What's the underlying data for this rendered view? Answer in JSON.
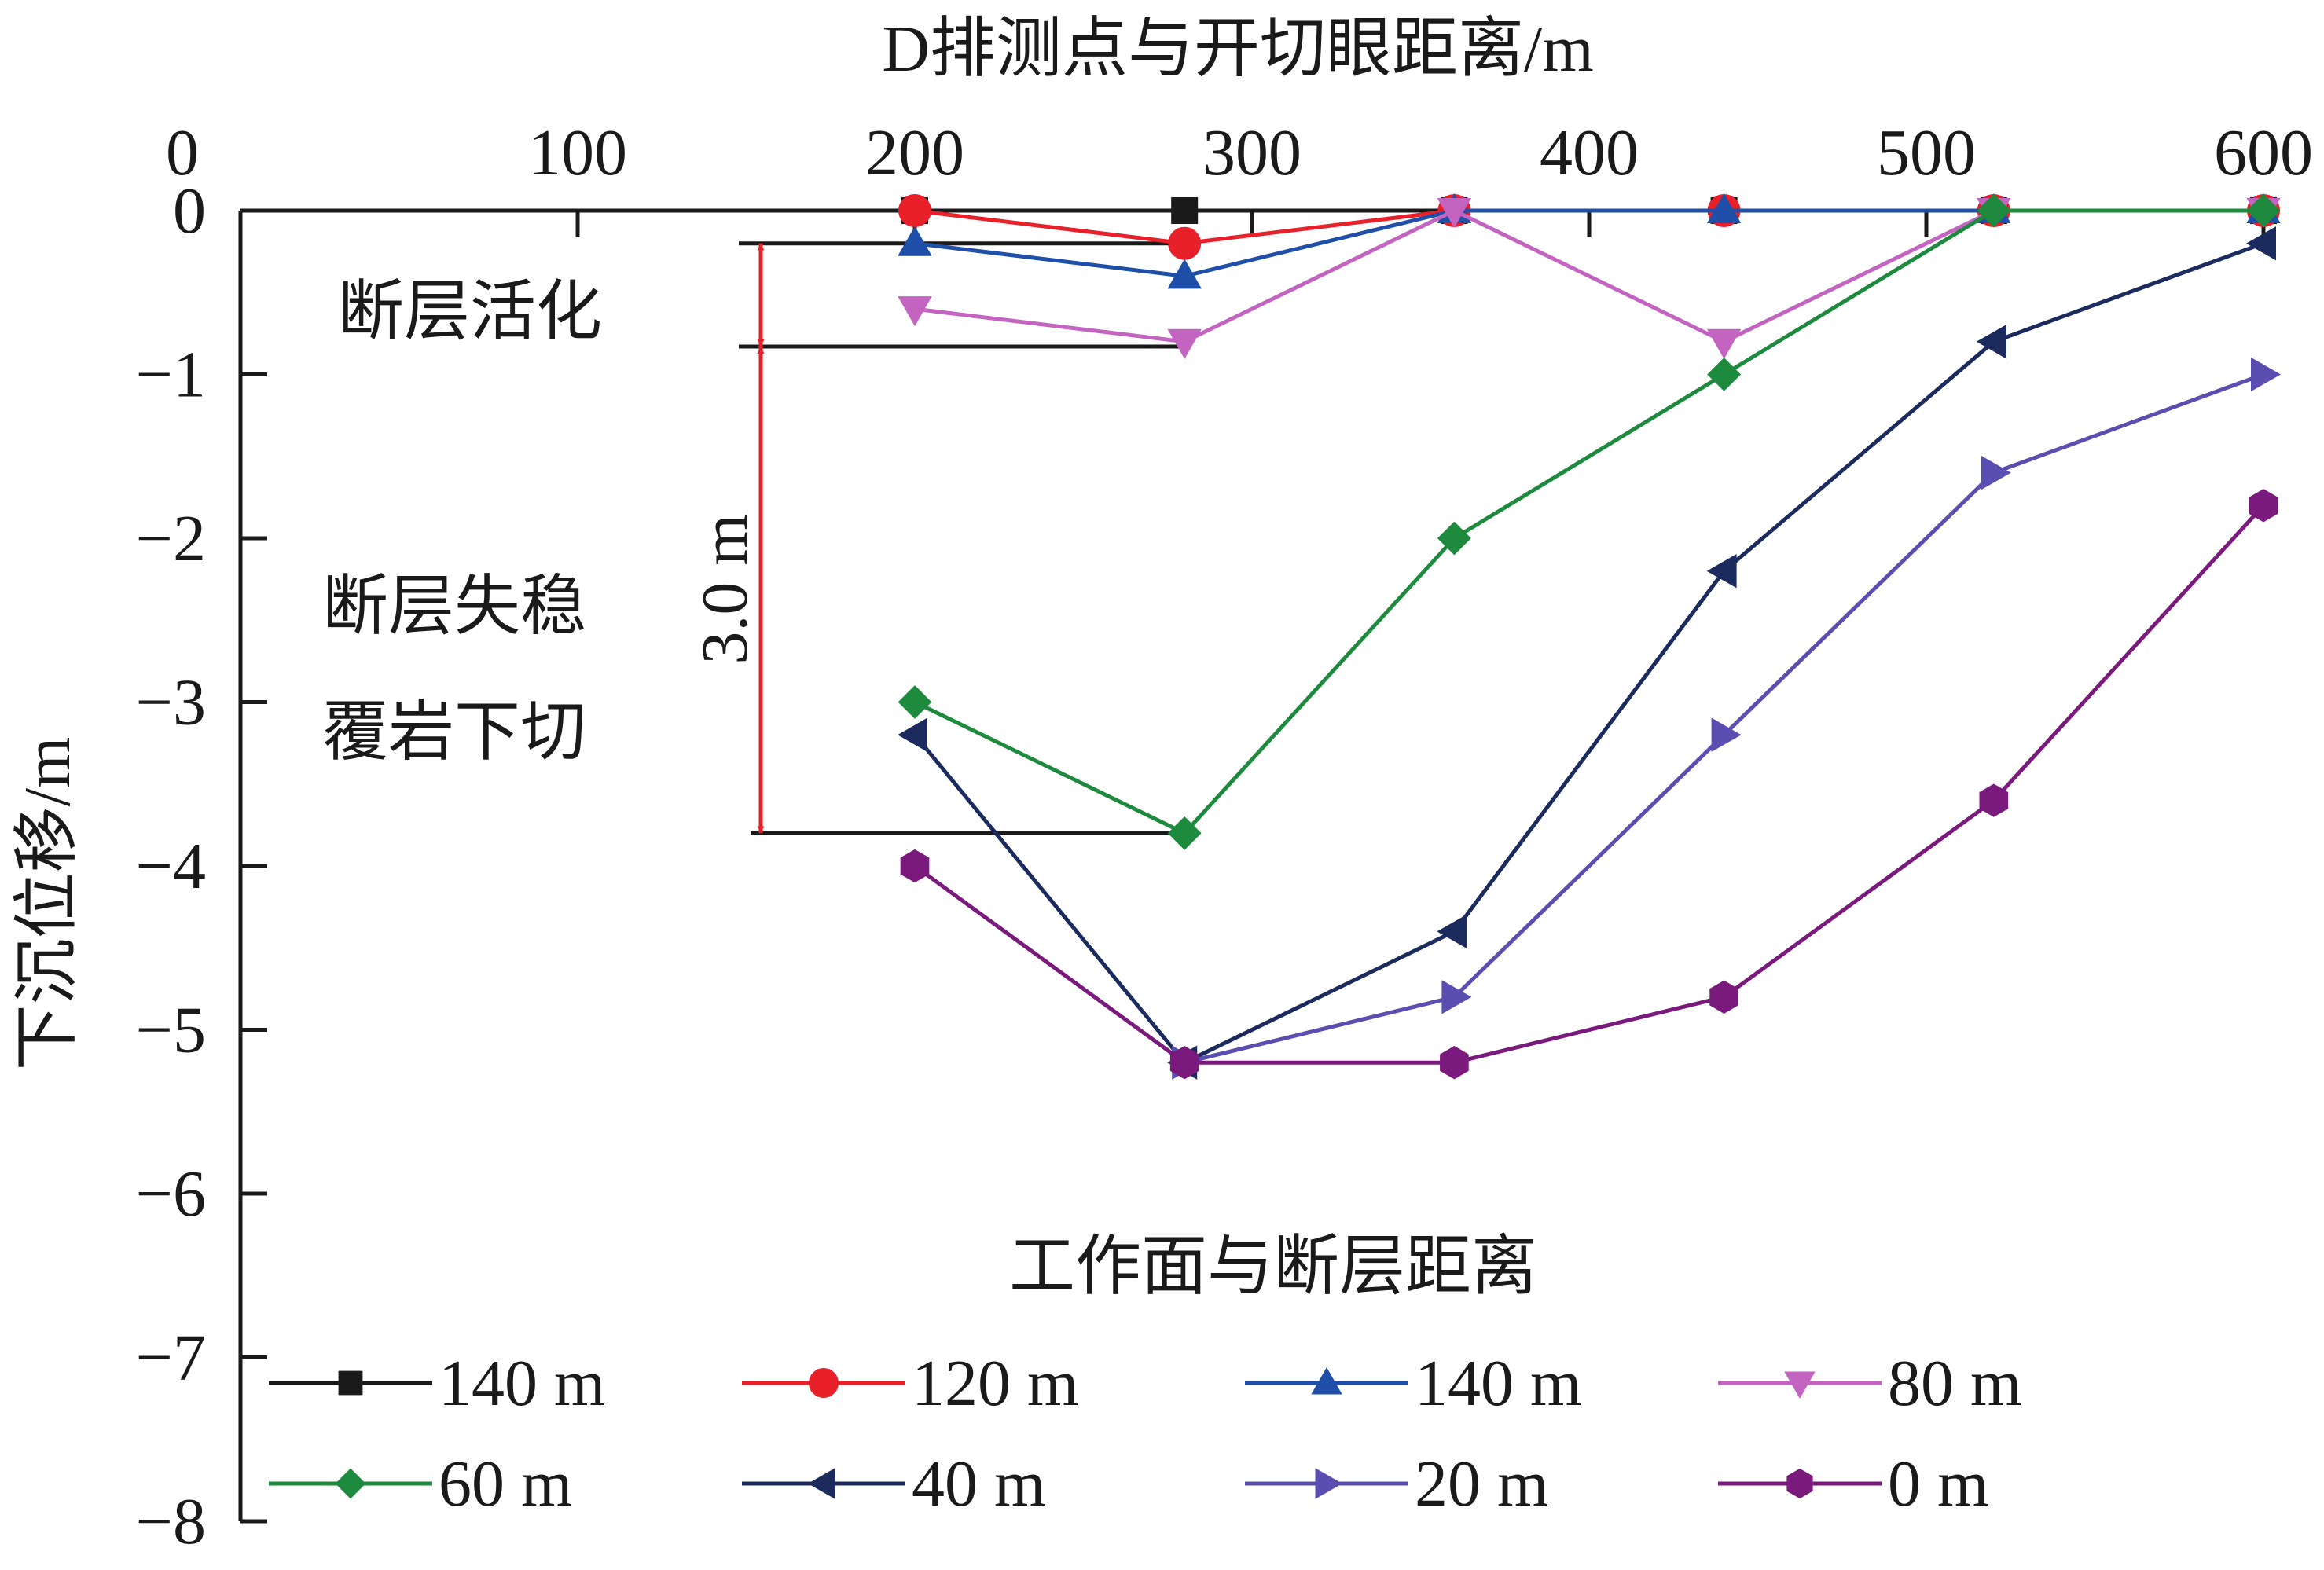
{
  "chart_data": {
    "type": "line",
    "title": "",
    "xlabel": "D排测点与开切眼距离/m",
    "ylabel": "下沉位移/m",
    "xlim": [
      0,
      600
    ],
    "ylim": [
      -8,
      0
    ],
    "xticks": [
      0,
      100,
      200,
      300,
      400,
      500,
      600
    ],
    "yticks": [
      0,
      -1,
      -2,
      -3,
      -4,
      -5,
      -6,
      -7,
      -8
    ],
    "x_tick_labels": [
      "0",
      "100",
      "200",
      "300",
      "400",
      "500",
      "600"
    ],
    "y_tick_labels": [
      "0",
      "−1",
      "−2",
      "−3",
      "−4",
      "−5",
      "−6",
      "−7",
      "−8"
    ],
    "x_axis_position": "top",
    "grid": false,
    "legend": {
      "title": "工作面与断层距离",
      "placement": "bottom",
      "columns": 4
    },
    "series": [
      {
        "name": "140 m",
        "color": "#1a1a1a",
        "marker": "square",
        "points": [
          [
            200,
            0
          ],
          [
            280,
            0
          ],
          [
            360,
            0
          ],
          [
            440,
            0
          ],
          [
            520,
            0
          ],
          [
            600,
            0
          ]
        ]
      },
      {
        "name": "120 m",
        "color": "#e8202a",
        "marker": "circle",
        "points": [
          [
            200,
            0
          ],
          [
            280,
            -0.2
          ],
          [
            360,
            0
          ],
          [
            440,
            0
          ],
          [
            520,
            0
          ],
          [
            600,
            0
          ]
        ]
      },
      {
        "name": "140 m",
        "color": "#1f4fa8",
        "marker": "triangle-up",
        "points": [
          [
            200,
            -0.2
          ],
          [
            280,
            -0.4
          ],
          [
            360,
            0
          ],
          [
            440,
            0
          ],
          [
            520,
            0
          ],
          [
            600,
            0
          ]
        ]
      },
      {
        "name": "80 m",
        "color": "#c264c0",
        "marker": "triangle-down",
        "points": [
          [
            200,
            -0.6
          ],
          [
            280,
            -0.8
          ],
          [
            360,
            0
          ],
          [
            440,
            -0.8
          ],
          [
            520,
            0
          ],
          [
            600,
            0
          ]
        ]
      },
      {
        "name": "60 m",
        "color": "#1d8a3e",
        "marker": "diamond",
        "points": [
          [
            200,
            -3.0
          ],
          [
            280,
            -3.8
          ],
          [
            360,
            -2.0
          ],
          [
            440,
            -1.0
          ],
          [
            520,
            0
          ],
          [
            600,
            0
          ]
        ]
      },
      {
        "name": "40 m",
        "color": "#1c2b5e",
        "marker": "triangle-left",
        "points": [
          [
            200,
            -3.2
          ],
          [
            280,
            -5.2
          ],
          [
            360,
            -4.4
          ],
          [
            440,
            -2.2
          ],
          [
            520,
            -0.8
          ],
          [
            600,
            -0.2
          ]
        ]
      },
      {
        "name": "20 m",
        "color": "#5a4fb0",
        "marker": "triangle-right",
        "points": [
          [
            280,
            -5.2
          ],
          [
            360,
            -4.8
          ],
          [
            440,
            -3.2
          ],
          [
            520,
            -1.6
          ],
          [
            600,
            -1.0
          ]
        ]
      },
      {
        "name": "0 m",
        "color": "#7a1a7c",
        "marker": "hexagon",
        "points": [
          [
            200,
            -4.0
          ],
          [
            280,
            -5.2
          ],
          [
            360,
            -5.2
          ],
          [
            440,
            -4.8
          ],
          [
            520,
            -3.6
          ],
          [
            600,
            -1.8
          ]
        ]
      }
    ],
    "annotations": {
      "fault_activation": "断层活化",
      "fault_instability_1": "断层失稳",
      "fault_instability_2": "覆岩下切",
      "subsidence_step": "3.0 m",
      "arrow_color": "#e8202a",
      "ref_levels": [
        -0.2,
        -0.83,
        -3.8
      ]
    }
  }
}
